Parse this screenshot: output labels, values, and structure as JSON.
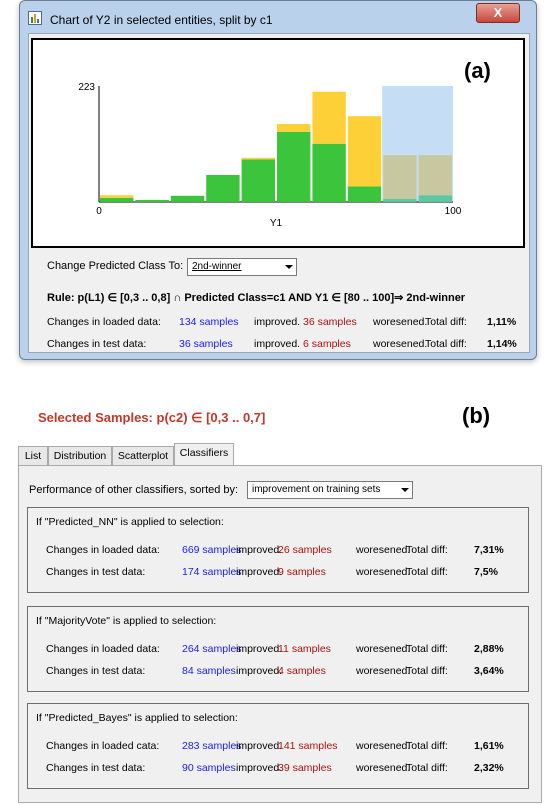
{
  "window": {
    "title": "Chart of Y2 in selected entities, split by c1",
    "close_glyph": "X"
  },
  "labels": {
    "a": "(a)",
    "b": "(b)"
  },
  "chart_data": {
    "type": "bar",
    "stacked": true,
    "ylim": [
      0,
      223
    ],
    "xlim": [
      0,
      100
    ],
    "xlabel": "Y1",
    "yticks": [
      "223"
    ],
    "xticks": [
      "0",
      "100"
    ],
    "bins": [
      {
        "from": 0,
        "to": 10,
        "green": 8,
        "yellow": 5
      },
      {
        "from": 10,
        "to": 20,
        "green": 4,
        "yellow": 0
      },
      {
        "from": 20,
        "to": 30,
        "green": 12,
        "yellow": 0
      },
      {
        "from": 30,
        "to": 40,
        "green": 52,
        "yellow": 0
      },
      {
        "from": 40,
        "to": 50,
        "green": 82,
        "yellow": 3
      },
      {
        "from": 50,
        "to": 60,
        "green": 135,
        "yellow": 15
      },
      {
        "from": 60,
        "to": 70,
        "green": 112,
        "yellow": 100
      },
      {
        "from": 70,
        "to": 80,
        "green": 30,
        "yellow": 135
      },
      {
        "from": 80,
        "to": 90,
        "green": 6,
        "olive": 84,
        "highlight": true
      },
      {
        "from": 90,
        "to": 100,
        "green": 13,
        "olive": 77
      }
    ],
    "highlight_range": [
      80,
      100
    ],
    "colors": {
      "green": "#3cc43c",
      "yellow": "#fdd037",
      "olive": "#c8c8a0",
      "highlight": "#c6def5",
      "teal": "#5ec6a0"
    }
  },
  "controls": {
    "change_label": "Change Predicted Class To:",
    "class_value": "2nd-winner"
  },
  "rule": {
    "text": "Rule:  p(L1) ∈ [0,3 .. 0,8] ∩ Predicted Class=c1 AND Y1 ∈ [80 .. 100]⇒  2nd-winner"
  },
  "summary_a": [
    {
      "label": "Changes in loaded data:",
      "improved": "134 samples",
      "improved_word": "improved.",
      "worsened": "36 samples",
      "worsened_word": "woresened.",
      "diff_label": "Total diff:",
      "diff": "1,11%"
    },
    {
      "label": "Changes in test data:",
      "improved": "36 samples",
      "improved_word": "improved.",
      "worsened": "6 samples",
      "worsened_word": "woresened.",
      "diff_label": "Total diff:",
      "diff": "1,14%"
    }
  ],
  "selected": {
    "title": "Selected Samples: p(c2) ∈ [0,3 .. 0,7]"
  },
  "tabs": [
    "List",
    "Distribution",
    "Scatterplot",
    "Classifiers"
  ],
  "active_tab": "Classifiers",
  "performance": {
    "label": "Performance of other classifiers, sorted by:",
    "sort_value": "improvement on training sets"
  },
  "groups": [
    {
      "title": "If \"Predicted_NN\" is applied to selection:",
      "rows": [
        {
          "label": "Changes in loaded data:",
          "improved": "669 samples",
          "improved_word": "improved.",
          "worsened": "26 samples",
          "worsened_word": "woresened.",
          "diff_label": "Total diff:",
          "diff": "7,31%"
        },
        {
          "label": "Changes in test data:",
          "improved": "174 samples",
          "improved_word": "improved.",
          "worsened": "9 samples",
          "worsened_word": "woresened.",
          "diff_label": "Total diff:",
          "diff": "7,5%"
        }
      ]
    },
    {
      "title": "If \"MajorityVote\" is applied to selection:",
      "rows": [
        {
          "label": "Changes in loaded data:",
          "improved": "264 samples",
          "improved_word": "improved.",
          "worsened": "11 samples",
          "worsened_word": "woresened.",
          "diff_label": "Total diff:",
          "diff": "2,88%"
        },
        {
          "label": "Changes in test data:",
          "improved": "84 samples",
          "improved_word": "improved.",
          "worsened": "4 samples",
          "worsened_word": "woresened.",
          "diff_label": "Total diff:",
          "diff": "3,64%"
        }
      ]
    },
    {
      "title": "If \"Predicted_Bayes\" is applied to selection:",
      "rows": [
        {
          "label": "Changes in loaded cata:",
          "improved": "283 samples",
          "improved_word": "improved.",
          "worsened": "141 samples",
          "worsened_word": "woresened.",
          "diff_label": "Total diff:",
          "diff": "1,61%"
        },
        {
          "label": "Changes in test data:",
          "improved": "90 samples",
          "improved_word": "improved.",
          "worsened": "39 samples",
          "worsened_word": "woresened.",
          "diff_label": "Total diff:",
          "diff": "2,32%"
        }
      ]
    }
  ]
}
